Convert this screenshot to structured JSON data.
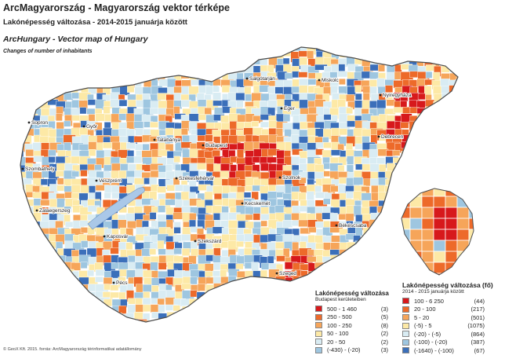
{
  "header": {
    "title_hu": "ArcMagyarország - Magyarország vektor térképe",
    "subtitle_hu": "Lakónépesség változása - 2014-2015 januárja között",
    "title_en": "ArcHungary - Vector map of Hungary",
    "subtitle_en": "Changes of number of inhabitants"
  },
  "colors": {
    "c1": "#d7191c",
    "c2": "#ed6a2a",
    "c3": "#f6a55a",
    "c4": "#fde9a6",
    "c5": "#d9ecf3",
    "c6": "#9ec6e0",
    "c7": "#3b6fba",
    "water": "#aac8e8",
    "border": "#4d4d4d"
  },
  "cities": [
    {
      "name": "Sopron"
    },
    {
      "name": "Győr"
    },
    {
      "name": "Tatabánya"
    },
    {
      "name": "Budapest"
    },
    {
      "name": "Salgótarján"
    },
    {
      "name": "Miskolc"
    },
    {
      "name": "Nyíregyháza"
    },
    {
      "name": "Eger"
    },
    {
      "name": "Debrecen"
    },
    {
      "name": "Szombathely"
    },
    {
      "name": "Veszprém"
    },
    {
      "name": "Székesfehérvár"
    },
    {
      "name": "Szolnok"
    },
    {
      "name": "Zalaegerszeg"
    },
    {
      "name": "Kecskemét"
    },
    {
      "name": "Békéscsaba"
    },
    {
      "name": "Kaposvár"
    },
    {
      "name": "Szekszárd"
    },
    {
      "name": "Pécs"
    },
    {
      "name": "Szeged"
    }
  ],
  "legend_settlements": {
    "title": "Lakónépesség változása",
    "subtitle": "Budapest kerületeiben",
    "items": [
      {
        "range": "500 - 1 460",
        "count": "(3)",
        "color": "c1"
      },
      {
        "range": "250 -   500",
        "count": "(5)",
        "color": "c2"
      },
      {
        "range": "100 -   250",
        "count": "(8)",
        "color": "c3"
      },
      {
        "range": "50 -   100",
        "count": "(2)",
        "color": "c4"
      },
      {
        "range": "20 -     50",
        "count": "(2)",
        "color": "c5"
      },
      {
        "range": "(-430) - (-20)",
        "count": "(3)",
        "color": "c6"
      }
    ]
  },
  "legend_main": {
    "title": "Lakónépesség változása (fő)",
    "subtitle": "2014 - 2015 januárja között",
    "items": [
      {
        "range": "100 - 6 250",
        "count": "(44)",
        "color": "c1"
      },
      {
        "range": "20 -   100",
        "count": "(217)",
        "color": "c2"
      },
      {
        "range": "5 -     20",
        "count": "(501)",
        "color": "c3"
      },
      {
        "range": "(-5) - 5",
        "count": "(1075)",
        "color": "c4"
      },
      {
        "range": "(-20) - (-5)",
        "count": "(864)",
        "color": "c5"
      },
      {
        "range": "(-100) - (-20)",
        "count": "(387)",
        "color": "c6"
      },
      {
        "range": "(-1640) - (-100)",
        "count": "(67)",
        "color": "c7"
      }
    ]
  },
  "footer": "© GeoX Kft. 2015. forrás: ArcMagyarország térinformatikai adatállomány"
}
